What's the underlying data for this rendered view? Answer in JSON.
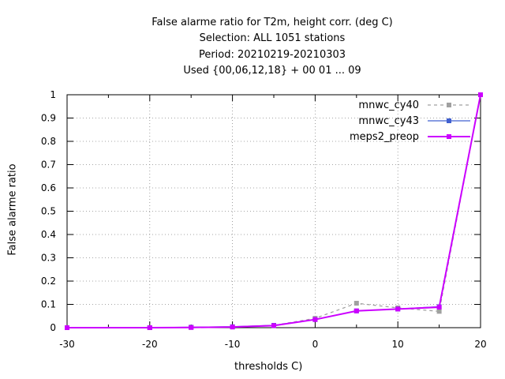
{
  "chart_data": {
    "type": "line",
    "title_lines": [
      "False alarme ratio  for T2m, height corr. (deg C)",
      "Selection: ALL    1051 stations",
      "Period: 20210219-20210303",
      "Used {00,06,12,18} + 00 01 ... 09"
    ],
    "xlabel": "thresholds C)",
    "ylabel": "False alarme ratio",
    "xlim": [
      -30,
      20
    ],
    "ylim": [
      0,
      1
    ],
    "x_ticks": [
      -30,
      -20,
      -10,
      0,
      10,
      20
    ],
    "x_tick_labels": [
      "-30",
      "-20",
      "-10",
      "0",
      "10",
      "20"
    ],
    "y_ticks": [
      0,
      0.1,
      0.2,
      0.3,
      0.4,
      0.5,
      0.6,
      0.7,
      0.8,
      0.9,
      1
    ],
    "y_tick_labels": [
      "0",
      "0.1",
      "0.2",
      "0.3",
      "0.4",
      "0.5",
      "0.6",
      "0.7",
      "0.8",
      "0.9",
      "1"
    ],
    "grid": true,
    "legend_position": "top-right",
    "series": [
      {
        "name": "mnwc_cy40",
        "color": "#a0a0a0",
        "dash": true,
        "marker": "square",
        "x": [
          -30,
          -20,
          -15,
          -10,
          -5,
          0,
          5,
          10,
          15,
          20
        ],
        "y": [
          0,
          0,
          0.001,
          0.003,
          0.01,
          0.04,
          0.105,
          0.085,
          0.07,
          1.0
        ]
      },
      {
        "name": "mnwc_cy43",
        "color": "#4060d0",
        "dash": false,
        "marker": "square",
        "x": [
          -30,
          -20,
          -15,
          -10,
          -5,
          0,
          5,
          10,
          15,
          20
        ],
        "y": [
          0,
          0,
          0.002,
          0.004,
          0.01,
          0.035,
          0.072,
          0.08,
          0.09,
          1.0
        ]
      },
      {
        "name": "meps2_preop",
        "color": "#cc00ff",
        "dash": false,
        "marker": "square",
        "x": [
          -30,
          -20,
          -15,
          -10,
          -5,
          0,
          5,
          10,
          15,
          20
        ],
        "y": [
          0,
          0,
          0.001,
          0.003,
          0.009,
          0.035,
          0.072,
          0.08,
          0.088,
          1.0
        ]
      }
    ]
  }
}
